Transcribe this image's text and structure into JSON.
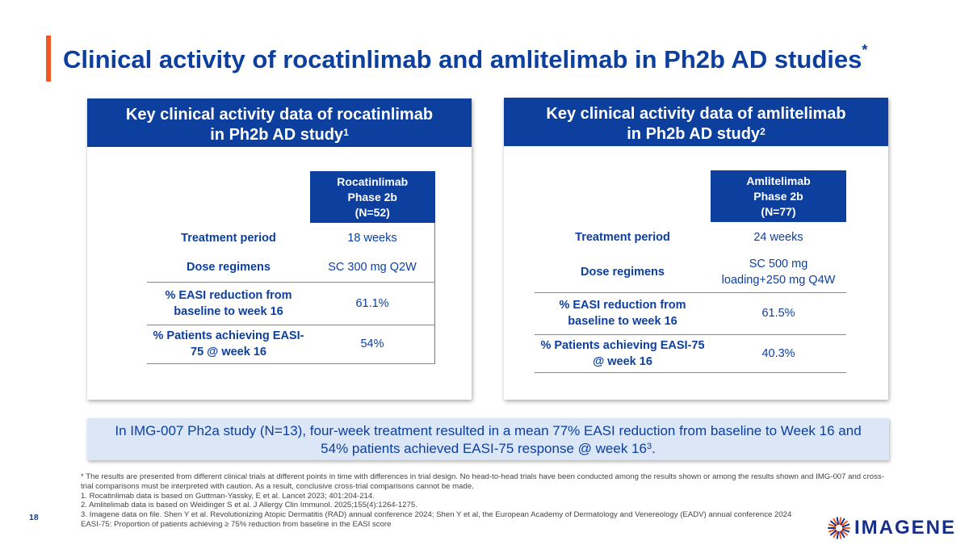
{
  "title": {
    "text": "Clinical activity of rocatinlimab and amlitelimab in Ph2b AD studies",
    "sup": "*"
  },
  "left_panel": {
    "header_line1": "Key clinical activity data of rocatinlimab",
    "header_line2": "in Ph2b AD study",
    "header_sup": "1",
    "col_head": [
      "Rocatinlimab",
      "Phase 2b",
      "(N=52)"
    ],
    "rows": [
      {
        "label": "Treatment period",
        "value": "18 weeks"
      },
      {
        "label": "Dose regimens",
        "value": "SC 300 mg Q2W"
      },
      {
        "label": "% EASI reduction from baseline to week 16",
        "value": "61.1%"
      },
      {
        "label": "% Patients achieving EASI-75 @ week 16",
        "value": "54%"
      }
    ]
  },
  "right_panel": {
    "header_line1": "Key clinical activity data of amlitelimab",
    "header_line2": "in Ph2b AD study",
    "header_sup": "2",
    "col_head": [
      "Amlitelimab",
      "Phase 2b",
      "(N=77)"
    ],
    "rows": [
      {
        "label": "Treatment period",
        "value": "24 weeks"
      },
      {
        "label": "Dose regimens",
        "value_line1": "SC 500 mg",
        "value_line2": "loading+250 mg Q4W"
      },
      {
        "label": "% EASI reduction from baseline to week 16",
        "value": "61.5%"
      },
      {
        "label": "% Patients achieving EASI-75 @ week 16",
        "value": "40.3%"
      }
    ]
  },
  "callout": {
    "line1": "In IMG-007 Ph2a study (N=13), four-week treatment resulted in a mean 77% EASI reduction from baseline to Week 16 and",
    "line2": "54% patients achieved EASI-75 response @ week 16",
    "sup": "3",
    "end": "."
  },
  "footnotes": [
    "* The results are presented from different clinical trials at different points in time with differences in trial design. No head-to-head trials have been conducted among the results shown or among the results shown and IMG-007 and cross-trial comparisons must be interpreted with caution. As a result, conclusive cross-trial comparisons cannot be made.",
    "1. Rocatinlimab data is based on Guttman-Yassky, E et al. Lancet 2023; 401:204-214.",
    "2. Amlitelimab data is based on Weidinger S et al. J Allergy Clin Immunol. 2025;155(4):1264-1275.",
    "3. Imagene data on file. Shen Y et al. Revolutionizing Atopic Dermatitis (RAD) annual conference 2024; Shen Y et al, the European Academy of Dermatology and Venereology (EADV) annual conference 2024",
    "EASI-75: Proportion of patients achieving ≥ 75% reduction from baseline in the EASI score"
  ],
  "page_number": "18",
  "logo": {
    "text": "IMAGENE",
    "icon": "sunburst-logo-icon",
    "colors": {
      "orange": "#f05a22",
      "blue": "#1a2f8a"
    }
  },
  "colors": {
    "accent": "#f05a22",
    "brand_blue": "#0d3f9e",
    "callout_bg": "#dbe6f6"
  }
}
